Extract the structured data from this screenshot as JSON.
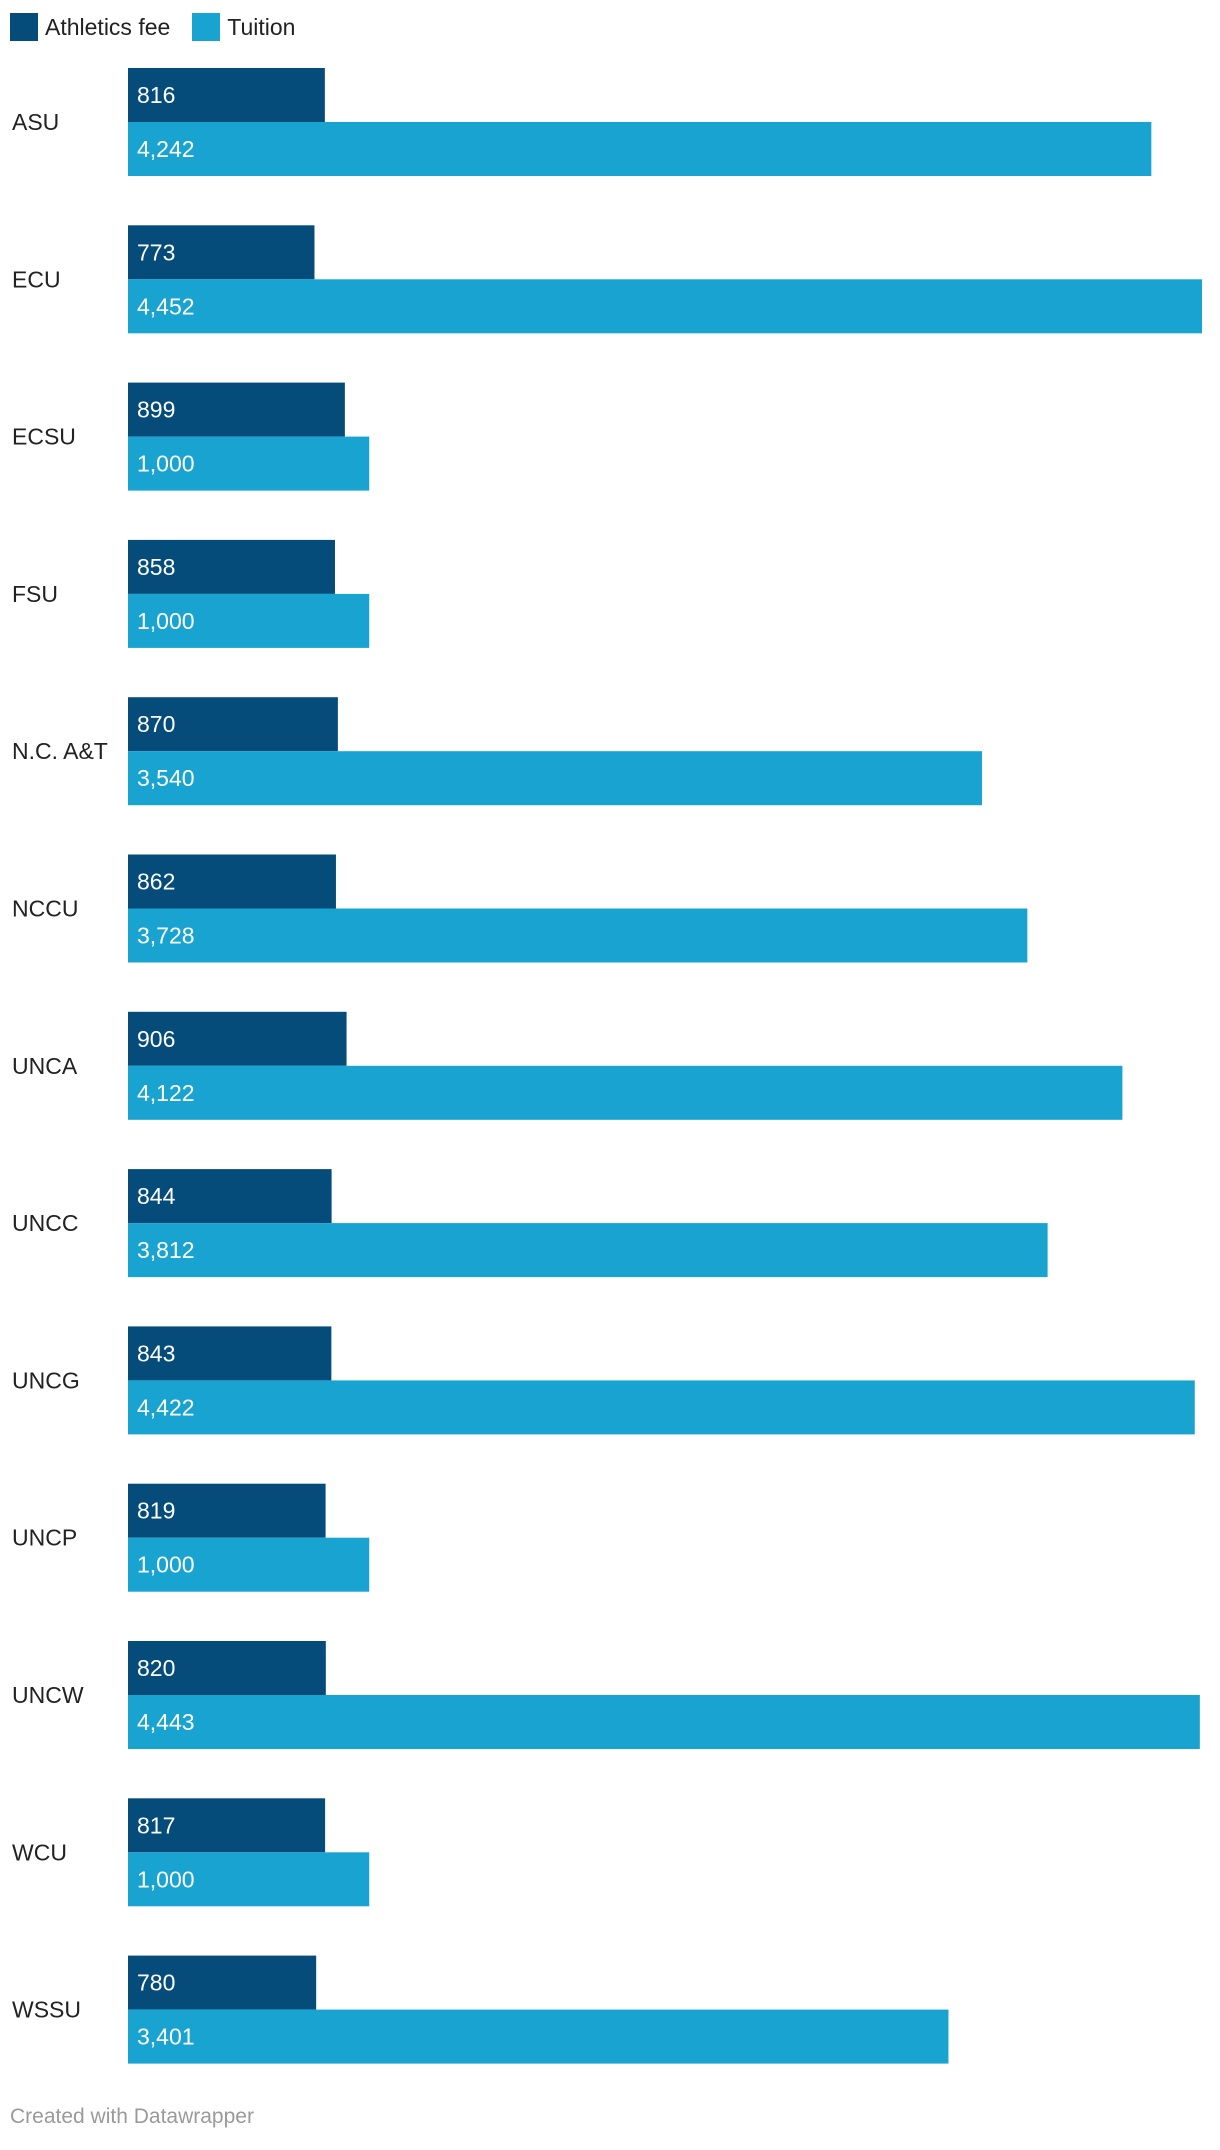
{
  "chart_data": {
    "type": "bar",
    "orientation": "horizontal",
    "categories": [
      "ASU",
      "ECU",
      "ECSU",
      "FSU",
      "N.C. A&T",
      "NCCU",
      "UNCA",
      "UNCC",
      "UNCG",
      "UNCP",
      "UNCW",
      "WCU",
      "WSSU"
    ],
    "series": [
      {
        "name": "Athletics fee",
        "color": "#054c7a",
        "values": [
          816,
          773,
          899,
          858,
          870,
          862,
          906,
          844,
          843,
          819,
          820,
          817,
          780
        ],
        "labels": [
          "816",
          "773",
          "899",
          "858",
          "870",
          "862",
          "906",
          "844",
          "843",
          "819",
          "820",
          "817",
          "780"
        ]
      },
      {
        "name": "Tuition",
        "color": "#19a3d1",
        "values": [
          4242,
          4452,
          1000,
          1000,
          3540,
          3728,
          4122,
          3812,
          4422,
          1000,
          4443,
          1000,
          3401
        ],
        "labels": [
          "4,242",
          "4,452",
          "1,000",
          "1,000",
          "3,540",
          "3,728",
          "4,122",
          "3,812",
          "4,422",
          "1,000",
          "4,443",
          "1,000",
          "3,401"
        ]
      }
    ],
    "xlim": [
      0,
      4452
    ],
    "legend_position": "top-left",
    "grid": false
  },
  "footer": {
    "credit": "Created with Datawrapper"
  }
}
